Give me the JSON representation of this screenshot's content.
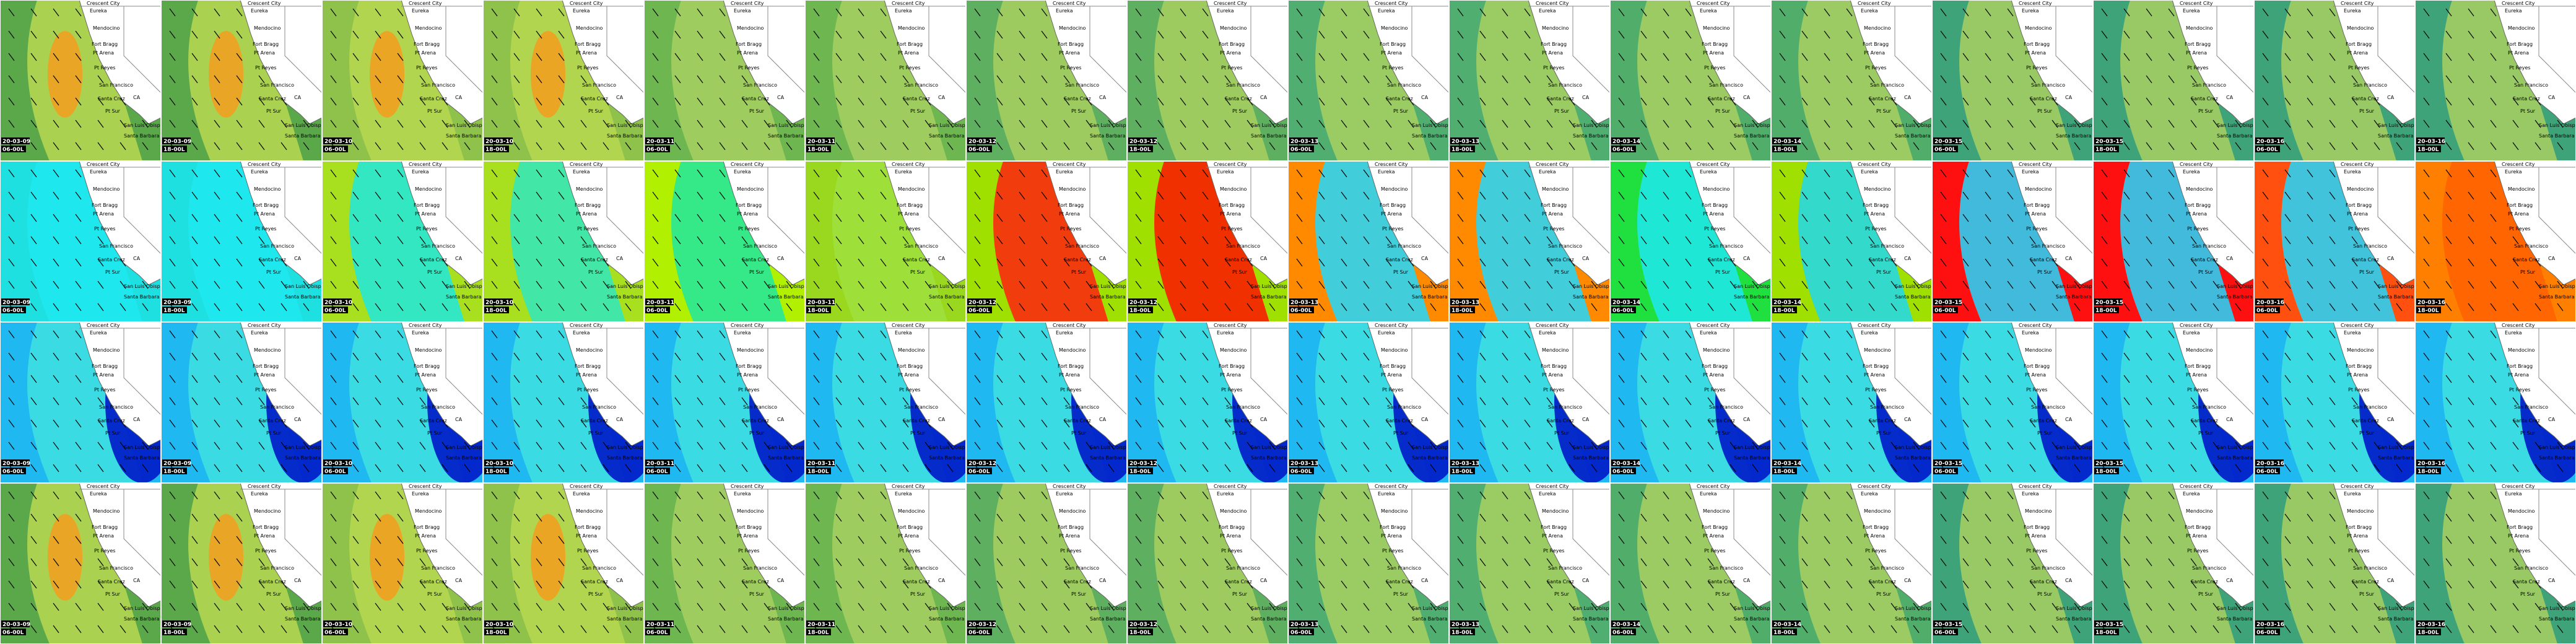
{
  "tiles": [
    {
      "date": "20-03-09",
      "time": "06-00L"
    },
    {
      "date": "20-03-09",
      "time": "18-00L"
    },
    {
      "date": "20-03-10",
      "time": "06-00L"
    },
    {
      "date": "20-03-10",
      "time": "18-00L"
    },
    {
      "date": "20-03-11",
      "time": "06-00L"
    },
    {
      "date": "20-03-11",
      "time": "18-00L"
    },
    {
      "date": "20-03-12",
      "time": "06-00L"
    },
    {
      "date": "20-03-12",
      "time": "18-00L"
    },
    {
      "date": "20-03-13",
      "time": "06-00L"
    },
    {
      "date": "20-03-13",
      "time": "18-00L"
    },
    {
      "date": "20-03-14",
      "time": "06-00L"
    },
    {
      "date": "20-03-14",
      "time": "18-00L"
    },
    {
      "date": "20-03-15",
      "time": "06-00L"
    },
    {
      "date": "20-03-15",
      "time": "18-00L"
    },
    {
      "date": "20-03-16",
      "time": "06-00L"
    },
    {
      "date": "20-03-16",
      "time": "18-00L"
    }
  ],
  "places": [
    "Crescent City",
    "Eureka",
    "Mendocino",
    "Fort Bragg",
    "Pt Arena",
    "Pt Reyes",
    "San Francisco",
    "Santa Cruz",
    "Pt Sur",
    "CA",
    "San Luis Obispo",
    "Santa Barbara"
  ]
}
